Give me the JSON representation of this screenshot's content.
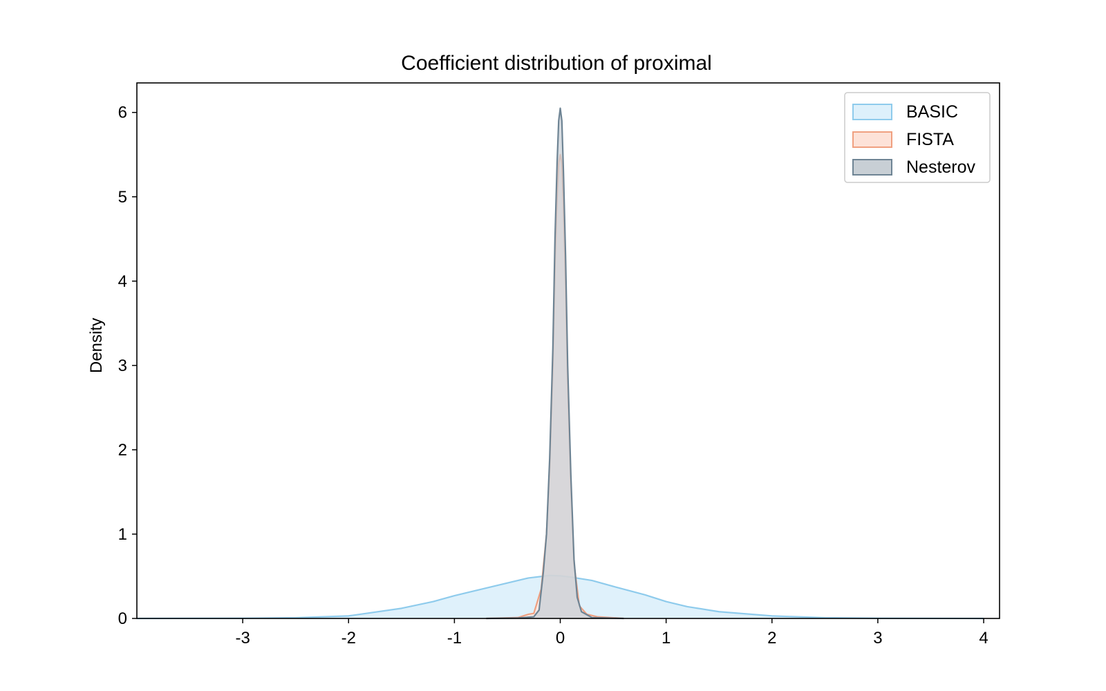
{
  "chart_data": {
    "type": "area",
    "title": "Coefficient distribution of proximal",
    "xlabel": "",
    "ylabel": "Density",
    "xlim": [
      -4.0,
      4.15
    ],
    "ylim": [
      0,
      6.35
    ],
    "xticks": [
      -3,
      -2,
      -1,
      0,
      1,
      2,
      3,
      4
    ],
    "xtick_labels": [
      "-3",
      "-2",
      "-1",
      "0",
      "1",
      "2",
      "3",
      "4"
    ],
    "yticks": [
      0,
      1,
      2,
      3,
      4,
      5,
      6
    ],
    "ytick_labels": [
      "0",
      "1",
      "2",
      "3",
      "4",
      "5",
      "6"
    ],
    "grid": false,
    "legend_position": "top-right",
    "series": [
      {
        "name": "BASIC",
        "line_color": "#8ecbec",
        "fill_color": "#ddf0fb",
        "x": [
          -4.0,
          -3.0,
          -2.5,
          -2.0,
          -1.5,
          -1.2,
          -1.0,
          -0.8,
          -0.5,
          -0.3,
          -0.1,
          0.0,
          0.1,
          0.3,
          0.5,
          0.8,
          1.0,
          1.2,
          1.5,
          2.0,
          2.5,
          3.0,
          4.0
        ],
        "y": [
          0.0,
          0.002,
          0.008,
          0.03,
          0.12,
          0.2,
          0.27,
          0.33,
          0.42,
          0.48,
          0.51,
          0.505,
          0.49,
          0.45,
          0.38,
          0.28,
          0.2,
          0.14,
          0.08,
          0.03,
          0.008,
          0.002,
          0.0
        ]
      },
      {
        "name": "FISTA",
        "line_color": "#f0a080",
        "fill_color": "#fde2d8",
        "x": [
          -0.7,
          -0.4,
          -0.3,
          -0.25,
          -0.18,
          -0.13,
          -0.1,
          -0.07,
          -0.05,
          -0.03,
          -0.015,
          0.0,
          0.015,
          0.03,
          0.05,
          0.07,
          0.1,
          0.13,
          0.18,
          0.25,
          0.35,
          0.6
        ],
        "y": [
          0.0,
          0.01,
          0.05,
          0.06,
          0.35,
          1.0,
          1.8,
          3.0,
          4.2,
          5.0,
          5.4,
          5.5,
          5.4,
          4.9,
          4.0,
          2.8,
          1.6,
          0.65,
          0.15,
          0.05,
          0.02,
          0.0
        ]
      },
      {
        "name": "Nesterov",
        "line_color": "#6e8494",
        "fill_color": "#c8cfd5",
        "x": [
          -0.7,
          -0.4,
          -0.25,
          -0.2,
          -0.16,
          -0.13,
          -0.1,
          -0.07,
          -0.05,
          -0.03,
          -0.015,
          0.0,
          0.015,
          0.03,
          0.05,
          0.07,
          0.1,
          0.13,
          0.16,
          0.2,
          0.3,
          0.6
        ],
        "y": [
          0.0,
          0.005,
          0.02,
          0.1,
          0.55,
          1.0,
          1.9,
          3.2,
          4.5,
          5.4,
          5.9,
          6.05,
          5.9,
          5.3,
          4.3,
          3.0,
          1.7,
          0.7,
          0.25,
          0.08,
          0.01,
          0.0
        ]
      }
    ]
  }
}
